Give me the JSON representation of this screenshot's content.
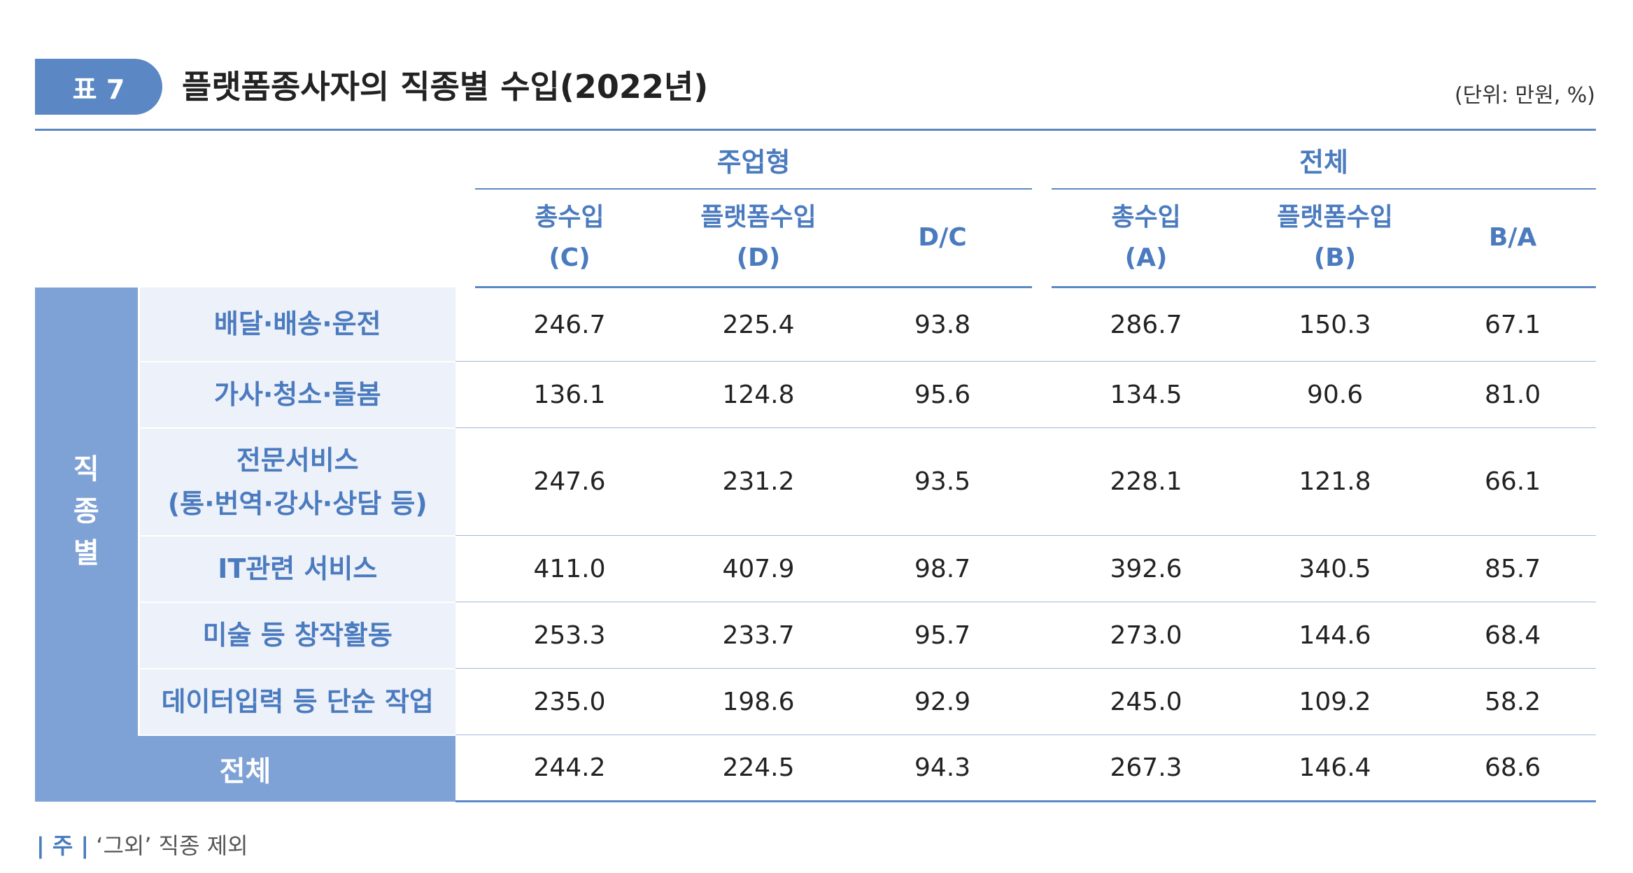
{
  "caption": {
    "badge": "표 7",
    "title": "플랫폼종사자의 직종별 수입(2022년)",
    "unit": "(단위: 만원, %)"
  },
  "table": {
    "groups": [
      "주업형",
      "전체"
    ],
    "columns": [
      [
        "총수입",
        "(C)"
      ],
      [
        "플랫폼수입",
        "(D)"
      ],
      [
        "D/C"
      ],
      [
        "총수입",
        "(A)"
      ],
      [
        "플랫폼수입",
        "(B)"
      ],
      [
        "B/A"
      ]
    ],
    "side_label": [
      "직",
      "종",
      "별"
    ],
    "rows": [
      {
        "label": [
          "배달·배송·운전"
        ],
        "values": [
          "246.7",
          "225.4",
          "93.8",
          "286.7",
          "150.3",
          "67.1"
        ]
      },
      {
        "label": [
          "가사·청소·돌봄"
        ],
        "values": [
          "136.1",
          "124.8",
          "95.6",
          "134.5",
          "90.6",
          "81.0"
        ]
      },
      {
        "label": [
          "전문서비스",
          "(통·번역·강사·상담 등)"
        ],
        "values": [
          "247.6",
          "231.2",
          "93.5",
          "228.1",
          "121.8",
          "66.1"
        ]
      },
      {
        "label": [
          "IT관련 서비스"
        ],
        "values": [
          "411.0",
          "407.9",
          "98.7",
          "392.6",
          "340.5",
          "85.7"
        ]
      },
      {
        "label": [
          "미술 등 창작활동"
        ],
        "values": [
          "253.3",
          "233.7",
          "95.7",
          "273.0",
          "144.6",
          "68.4"
        ]
      },
      {
        "label": [
          "데이터입력 등 단순 작업"
        ],
        "values": [
          "235.0",
          "198.6",
          "92.9",
          "245.0",
          "109.2",
          "58.2"
        ]
      }
    ],
    "total": {
      "label": "전체",
      "values": [
        "244.2",
        "224.5",
        "94.3",
        "267.3",
        "146.4",
        "68.6"
      ]
    }
  },
  "note": {
    "mark": "| 주 |",
    "text": "‘그외’ 직종 제외"
  },
  "colors": {
    "accent": "#5b88c4",
    "side": "#7fa2d6",
    "label_bg": "#edf1f9"
  }
}
